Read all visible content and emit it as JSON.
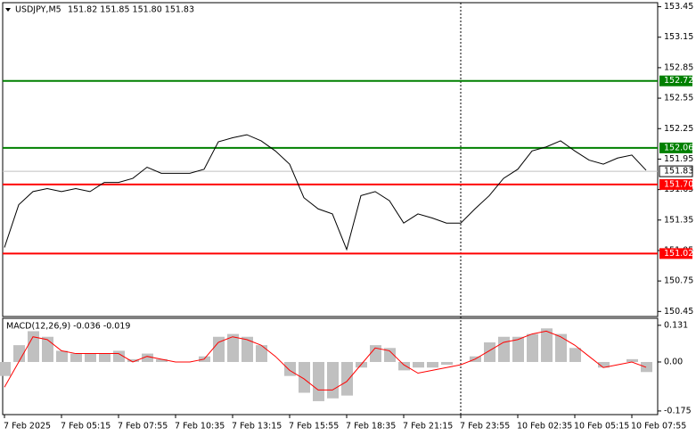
{
  "chart_data": [
    {
      "type": "line",
      "title": "USDJPY,M5",
      "subtitle": "151.82 151.85 151.80 151.83",
      "color": "#000000",
      "values": [
        151.08,
        151.5,
        151.63,
        151.66,
        151.63,
        151.66,
        151.63,
        151.72,
        151.72,
        151.76,
        151.87,
        151.81,
        151.81,
        151.81,
        151.85,
        152.12,
        152.16,
        152.19,
        152.13,
        152.03,
        151.9,
        151.57,
        151.46,
        151.41,
        151.06,
        151.59,
        151.63,
        151.54,
        151.32,
        151.41,
        151.37,
        151.32,
        151.32,
        151.46,
        151.59,
        151.76,
        151.85,
        152.03,
        152.07,
        152.13,
        152.03,
        151.94,
        151.9,
        151.96,
        151.99,
        151.84
      ],
      "ylim": [
        150.4,
        153.49
      ],
      "yticks": [
        150.45,
        150.75,
        151.05,
        151.35,
        151.65,
        151.95,
        152.25,
        152.55,
        152.85,
        153.15,
        153.45
      ],
      "levels": [
        {
          "value": 152.72,
          "color": "#008000"
        },
        {
          "value": 152.06,
          "color": "#008000"
        },
        {
          "value": 151.7,
          "label": "151.70",
          "color": "#ff0000"
        },
        {
          "value": 151.02,
          "color": "#ff0000"
        }
      ],
      "last_price": 151.83
    },
    {
      "type": "bar",
      "title": "MACD(12,26,9) -0.036 -0.019",
      "categories": [
        "7 Feb 2025",
        null,
        null,
        null,
        "7 Feb 05:15",
        null,
        null,
        null,
        "7 Feb 07:55",
        null,
        null,
        null,
        "7 Feb 10:35",
        null,
        null,
        null,
        "7 Feb 13:15",
        null,
        null,
        null,
        "7 Feb 15:55",
        null,
        null,
        null,
        "7 Feb 18:35",
        null,
        null,
        null,
        "7 Feb 21:15",
        null,
        null,
        null,
        "7 Feb 23:55",
        null,
        null,
        null,
        "10 Feb 02:35",
        null,
        null,
        null,
        "10 Feb 05:15",
        null,
        null,
        null,
        "10 Feb 07:55",
        null
      ],
      "series": [
        {
          "type": "bar",
          "color": "#c0c0c0",
          "values": [
            -0.05,
            0.06,
            0.11,
            0.09,
            0.04,
            0.03,
            0.03,
            0.03,
            0.04,
            0.01,
            0.03,
            0.01,
            0,
            0,
            0.02,
            0.09,
            0.1,
            0.09,
            0.06,
            0,
            -0.05,
            -0.11,
            -0.14,
            -0.13,
            -0.12,
            -0.02,
            0.06,
            0.05,
            -0.03,
            -0.02,
            -0.02,
            -0.01,
            0,
            0.02,
            0.07,
            0.09,
            0.09,
            0.1,
            0.12,
            0.1,
            0.05,
            0,
            -0.02,
            0,
            0.01,
            -0.036
          ]
        },
        {
          "type": "line",
          "color": "#ff0000",
          "values": [
            -0.09,
            0,
            0.09,
            0.08,
            0.04,
            0.03,
            0.03,
            0.03,
            0.03,
            0,
            0.02,
            0.01,
            0,
            0,
            0.01,
            0.07,
            0.09,
            0.08,
            0.06,
            0.02,
            -0.03,
            -0.06,
            -0.1,
            -0.1,
            -0.07,
            -0.01,
            0.05,
            0.04,
            -0.01,
            -0.04,
            -0.03,
            -0.02,
            -0.01,
            0.01,
            0.04,
            0.07,
            0.08,
            0.1,
            0.11,
            0.09,
            0.06,
            0.02,
            -0.02,
            -0.01,
            0,
            -0.019
          ]
        }
      ],
      "ylim": [
        -0.188,
        0.156
      ],
      "yticks": [
        -0.175,
        {
          "value": 0,
          "label": "0.00"
        },
        0.131
      ]
    }
  ]
}
